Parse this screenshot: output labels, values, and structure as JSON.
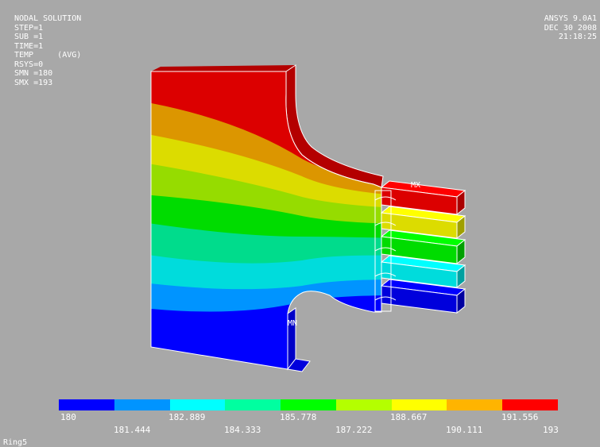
{
  "header": {
    "title": "NODAL SOLUTION",
    "info_lines": [
      "STEP=1",
      "SUB =1",
      "TIME=1",
      "TEMP     (AVG)",
      "RSYS=0",
      "SMN =180",
      "SMX =193"
    ],
    "product": "ANSYS 9.0A1",
    "date": "DEC 30 2008",
    "time": "21:18:25"
  },
  "model": {
    "max_marker": "MX",
    "min_marker": "MN"
  },
  "legend": {
    "colors": [
      "#0000ff",
      "#0094ff",
      "#00ffff",
      "#00ffa0",
      "#00ff00",
      "#b4ff00",
      "#ffff00",
      "#ffb400",
      "#ff0000"
    ],
    "labels": [
      "180",
      "181.444",
      "182.889",
      "184.333",
      "185.778",
      "187.222",
      "188.667",
      "190.111",
      "191.556",
      "193"
    ]
  },
  "footer": {
    "text": "Ring5"
  }
}
